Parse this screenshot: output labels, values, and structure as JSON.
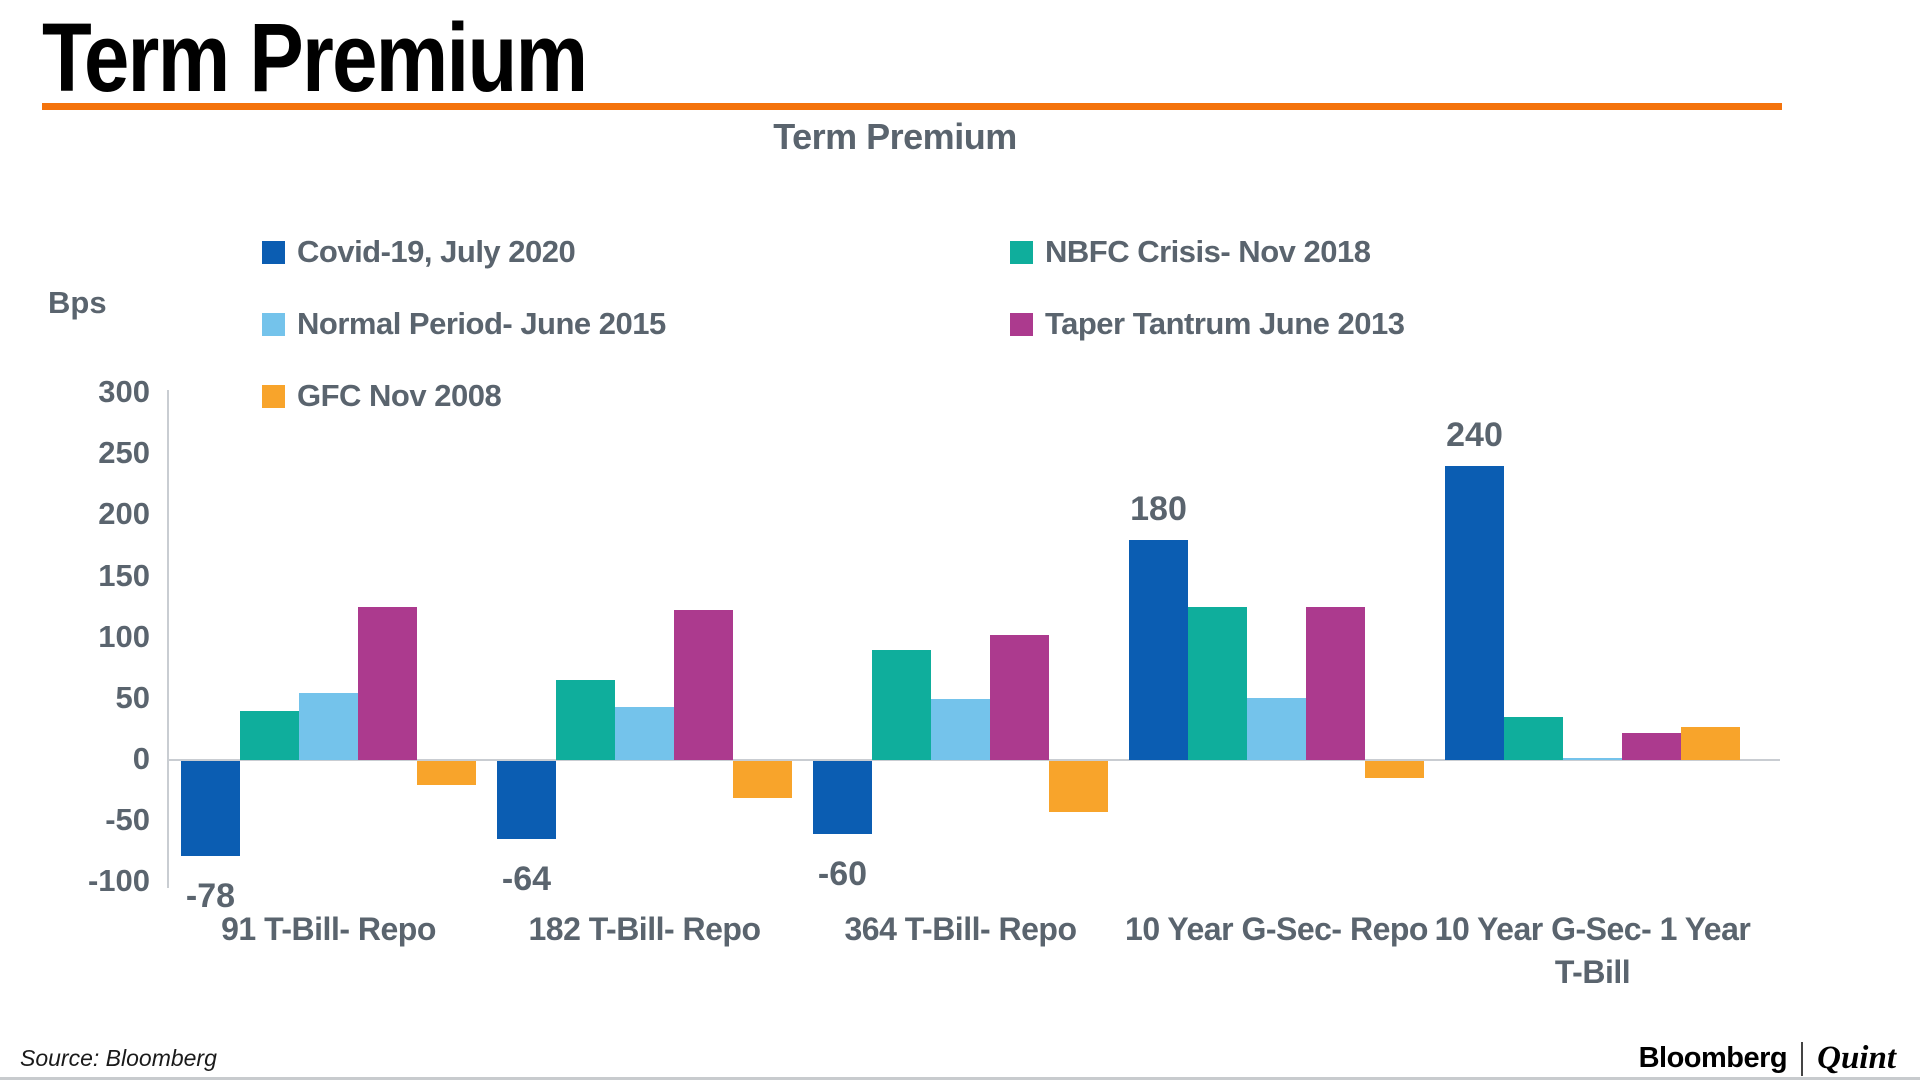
{
  "page": {
    "main_title": "Term Premium",
    "accent_color": "#f4730c"
  },
  "chart_data": {
    "type": "bar",
    "title": "Term Premium",
    "ylabel": "Bps",
    "ylim": [
      -100,
      300
    ],
    "ytick_interval": 50,
    "grid": false,
    "legend_position": "top, two columns",
    "categories": [
      "91 T-Bill- Repo",
      "182 T-Bill- Repo",
      "364 T-Bill- Repo",
      "10 Year G-Sec- Repo",
      "10 Year G-Sec- 1 Year T-Bill"
    ],
    "series": [
      {
        "name": "Covid-19, July 2020",
        "color": "#0b5db2",
        "values": [
          -78,
          -64,
          -60,
          180,
          240
        ]
      },
      {
        "name": "NBFC Crisis- Nov 2018",
        "color": "#0fae9c",
        "values": [
          40,
          65,
          90,
          125,
          35
        ]
      },
      {
        "name": "Normal Period- June 2015",
        "color": "#74c3eb",
        "values": [
          55,
          43,
          50,
          51,
          1
        ]
      },
      {
        "name": "Taper Tantrum June 2013",
        "color": "#ac3a8e",
        "values": [
          125,
          123,
          102,
          125,
          22
        ]
      },
      {
        "name": "GFC Nov 2008",
        "color": "#f8a42b",
        "values": [
          -20,
          -30,
          -42,
          -14,
          27
        ]
      }
    ],
    "data_labels": {
      "series": "Covid-19, July 2020",
      "values": [
        "-78",
        "-64",
        "-60",
        "180",
        "240"
      ]
    }
  },
  "footer": {
    "source": "Source: Bloomberg",
    "brand_1": "Bloomberg",
    "brand_2": "Quint"
  }
}
